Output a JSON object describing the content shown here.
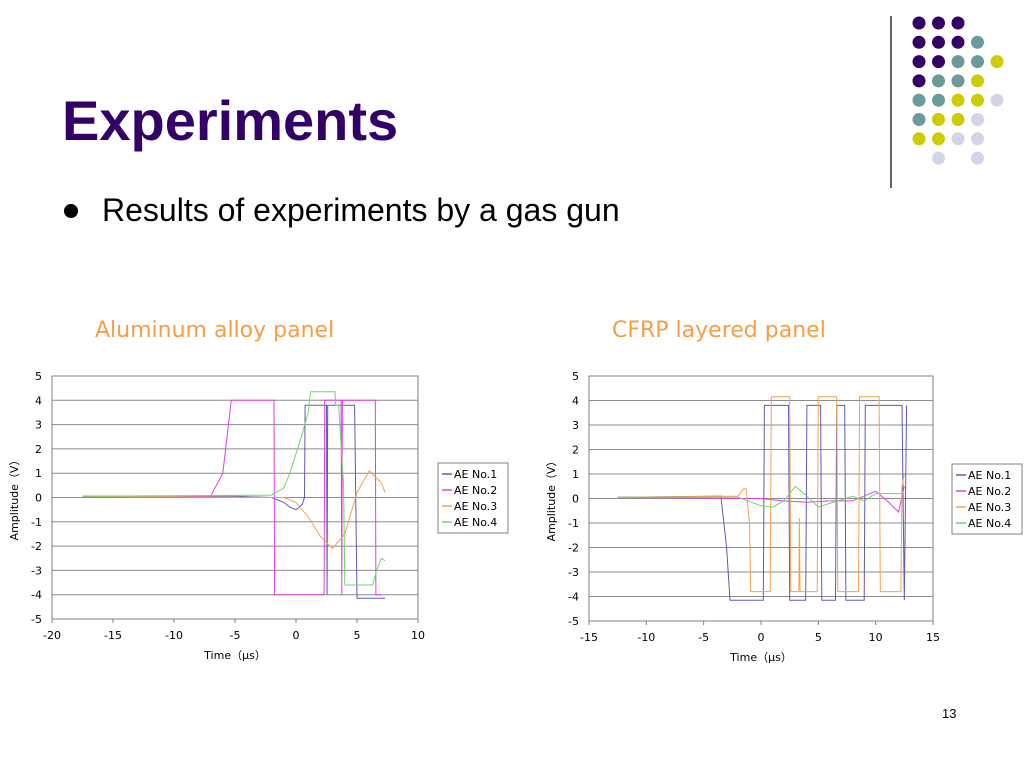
{
  "slide": {
    "title": "Experiments",
    "bullet": "Results of experiments by a gas gun",
    "page_number": "13"
  },
  "colors": {
    "title": "#330066",
    "chart_title": "#f79d46",
    "dots": {
      "purple": "#330066",
      "teal": "#6b9a9a",
      "yellow": "#cccc00",
      "lavender": "#d4d4e8"
    }
  },
  "chart_data": [
    {
      "type": "line",
      "title": "Aluminum alloy panel",
      "xlabel": "Time（μs）",
      "ylabel": "Amplitude（V）",
      "xlim": [
        -20,
        10
      ],
      "ylim": [
        -5,
        5
      ],
      "xticks": [
        "-20",
        "-15",
        "-10",
        "-5",
        "0",
        "5",
        "10"
      ],
      "yticks": [
        "5",
        "4",
        "3",
        "2",
        "1",
        "0",
        "-1",
        "-2",
        "-3",
        "-4",
        "-5"
      ],
      "grid": "horizontal",
      "legend_position": "right",
      "series": [
        {
          "name": "AE No.1",
          "color": "#5b5bb8",
          "x": [
            -17.5,
            -5,
            -2,
            -1,
            -0.5,
            0,
            0.5,
            0.7,
            0.75,
            1.2,
            2.5,
            2.55,
            2.6,
            2.65,
            4.8,
            5.0,
            5.05,
            7.3
          ],
          "y": [
            0.05,
            0.05,
            0,
            -0.2,
            -0.4,
            -0.5,
            -0.3,
            0,
            3.8,
            3.8,
            3.8,
            -4.0,
            3.8,
            3.8,
            3.8,
            -4.15,
            -4.15,
            -4.15
          ]
        },
        {
          "name": "AE No.2",
          "color": "#e040e0",
          "x": [
            -17.5,
            -7,
            -6,
            -5.3,
            -5.2,
            -1.8,
            -1.75,
            -1.7,
            2.3,
            2.35,
            2.4,
            3.7,
            3.75,
            3.8,
            6.5,
            6.55,
            6.6,
            7.0
          ],
          "y": [
            0.05,
            0.05,
            1.0,
            4.0,
            4.0,
            4.0,
            -4.0,
            -4.0,
            -4.0,
            4.0,
            4.0,
            4.0,
            -4.0,
            4.0,
            4.0,
            -4.0,
            -4.0,
            -4.0
          ]
        },
        {
          "name": "AE No.3",
          "color": "#f7a050",
          "x": [
            -17.5,
            -1,
            0,
            1,
            2,
            3,
            4,
            5,
            6,
            7,
            7.3
          ],
          "y": [
            0.05,
            0,
            -0.2,
            -0.8,
            -1.6,
            -2.1,
            -1.5,
            0.2,
            1.1,
            0.6,
            0.2
          ]
        },
        {
          "name": "AE No.4",
          "color": "#6ad86a",
          "x": [
            -17.5,
            -2,
            -1,
            -0.5,
            0,
            0.5,
            1,
            1.2,
            3.2,
            3.25,
            3.5,
            3.9,
            4.0,
            6.3,
            6.6,
            7.0,
            7.3
          ],
          "y": [
            0.05,
            0.1,
            0.4,
            1.0,
            1.8,
            2.6,
            3.5,
            4.35,
            4.35,
            3.8,
            3.8,
            0.5,
            -3.6,
            -3.6,
            -3.0,
            -2.5,
            -2.6
          ]
        }
      ]
    },
    {
      "type": "line",
      "title": "CFRP layered panel",
      "xlabel": "Time（μs）",
      "ylabel": "Amplitude（V）",
      "xlim": [
        -15,
        15
      ],
      "ylim": [
        -5,
        5
      ],
      "xticks": [
        "-15",
        "-10",
        "-5",
        "0",
        "5",
        "10",
        "15"
      ],
      "yticks": [
        "5",
        "4",
        "3",
        "2",
        "1",
        "0",
        "-1",
        "-2",
        "-3",
        "-4",
        "-5"
      ],
      "grid": "horizontal",
      "legend_position": "right",
      "series": [
        {
          "name": "AE No.1",
          "color": "#5b5bb8",
          "x": [
            -12.5,
            -3.5,
            -3,
            -2.7,
            -2.5,
            0.2,
            0.3,
            2.4,
            2.5,
            3.9,
            4.0,
            5.2,
            5.3,
            6.5,
            6.6,
            7.3,
            7.4,
            9.0,
            9.1,
            12.3,
            12.5,
            12.7
          ],
          "y": [
            0.05,
            0.1,
            -2.0,
            -4.15,
            -4.15,
            -4.15,
            3.8,
            3.8,
            -4.15,
            -4.15,
            3.8,
            3.8,
            -4.15,
            -4.15,
            3.8,
            3.8,
            -4.15,
            -4.15,
            3.8,
            3.8,
            -4.15,
            3.8
          ]
        },
        {
          "name": "AE No.2",
          "color": "#e040e0",
          "x": [
            -12.5,
            -2,
            0,
            2,
            4,
            6,
            8,
            10,
            11,
            12,
            12.5
          ],
          "y": [
            0.05,
            0,
            0,
            -0.1,
            -0.15,
            -0.1,
            -0.1,
            0.3,
            -0.1,
            -0.55,
            0.5
          ]
        },
        {
          "name": "AE No.3",
          "color": "#f7a050",
          "x": [
            -12.5,
            -2,
            -1.5,
            -1.3,
            -1.0,
            -0.9,
            0.8,
            0.9,
            2.5,
            2.6,
            3.3,
            3.35,
            3.4,
            4.9,
            5.0,
            6.6,
            6.7,
            8.5,
            8.6,
            10.3,
            10.4,
            12.2,
            12.3,
            12.5
          ],
          "y": [
            0.05,
            0.1,
            0.4,
            0.4,
            -1.0,
            -3.8,
            -3.8,
            4.15,
            4.15,
            -3.8,
            -3.8,
            -0.8,
            -3.8,
            -3.8,
            4.15,
            4.15,
            -3.8,
            -3.8,
            4.15,
            4.15,
            -3.8,
            -3.8,
            0.5,
            1.0
          ]
        },
        {
          "name": "AE No.4",
          "color": "#6ad86a",
          "x": [
            -12.5,
            -2,
            0,
            1,
            2,
            3,
            4,
            5,
            6,
            8,
            9,
            10,
            11,
            12,
            12.5
          ],
          "y": [
            0.05,
            0.05,
            -0.3,
            -0.35,
            -0.1,
            0.5,
            0.1,
            -0.35,
            -0.2,
            0.1,
            -0.1,
            0.2,
            0.2,
            0.2,
            0.2
          ]
        }
      ]
    }
  ]
}
